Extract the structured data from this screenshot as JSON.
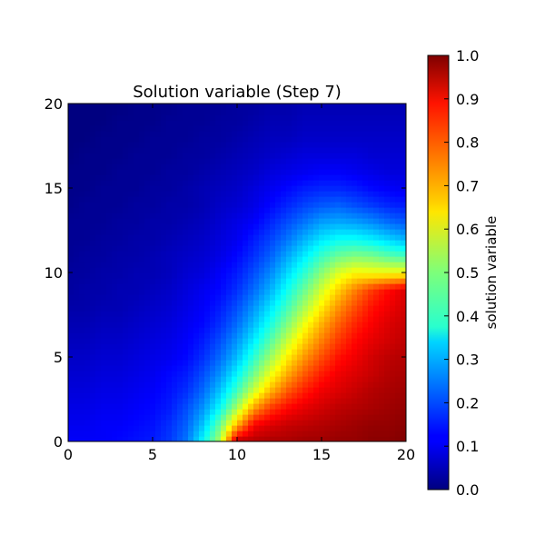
{
  "chart_data": {
    "type": "heatmap",
    "title": "Solution variable (Step 7)",
    "xlabel": "",
    "ylabel": "",
    "xlim": [
      0,
      20
    ],
    "ylim": [
      0,
      20
    ],
    "x_ticks": [
      {
        "value": 0,
        "label": "0"
      },
      {
        "value": 5,
        "label": "5"
      },
      {
        "value": 10,
        "label": "10"
      },
      {
        "value": 15,
        "label": "15"
      },
      {
        "value": 20,
        "label": "20"
      }
    ],
    "y_ticks": [
      {
        "value": 0,
        "label": "0"
      },
      {
        "value": 5,
        "label": "5"
      },
      {
        "value": 10,
        "label": "10"
      },
      {
        "value": 15,
        "label": "15"
      },
      {
        "value": 20,
        "label": "20"
      }
    ],
    "colormap": "jet",
    "colorbar": {
      "label": "solution variable",
      "range": [
        0.0,
        1.0
      ],
      "ticks": [
        {
          "value": 0.0,
          "label": "0.0"
        },
        {
          "value": 0.1,
          "label": "0.1"
        },
        {
          "value": 0.2,
          "label": "0.2"
        },
        {
          "value": 0.3,
          "label": "0.3"
        },
        {
          "value": 0.4,
          "label": "0.4"
        },
        {
          "value": 0.5,
          "label": "0.5"
        },
        {
          "value": 0.6,
          "label": "0.6"
        },
        {
          "value": 0.7,
          "label": "0.7"
        },
        {
          "value": 0.8,
          "label": "0.8"
        },
        {
          "value": 0.9,
          "label": "0.9"
        },
        {
          "value": 1.0,
          "label": "1.0"
        }
      ]
    },
    "grid": false,
    "field": {
      "description_of_values": "approximate solution values sampled on a 21x21 grid, rows y=0..20, cols x=0..20",
      "x": [
        0,
        1,
        2,
        3,
        4,
        5,
        6,
        7,
        8,
        9,
        10,
        11,
        12,
        13,
        14,
        15,
        16,
        17,
        18,
        19,
        20
      ],
      "y": [
        0,
        1,
        2,
        3,
        4,
        5,
        6,
        7,
        8,
        9,
        10,
        11,
        12,
        13,
        14,
        15,
        16,
        17,
        18,
        19,
        20
      ],
      "values": [
        [
          0.12,
          0.12,
          0.12,
          0.13,
          0.14,
          0.15,
          0.18,
          0.24,
          0.38,
          0.55,
          0.95,
          0.95,
          0.96,
          0.96,
          0.97,
          0.97,
          0.98,
          0.98,
          0.99,
          0.99,
          1.0
        ],
        [
          0.11,
          0.11,
          0.12,
          0.12,
          0.13,
          0.14,
          0.17,
          0.22,
          0.32,
          0.48,
          0.7,
          0.88,
          0.91,
          0.93,
          0.94,
          0.95,
          0.96,
          0.97,
          0.98,
          0.98,
          0.99
        ],
        [
          0.1,
          0.1,
          0.11,
          0.11,
          0.12,
          0.13,
          0.15,
          0.2,
          0.27,
          0.38,
          0.54,
          0.72,
          0.82,
          0.87,
          0.9,
          0.92,
          0.94,
          0.95,
          0.96,
          0.97,
          0.98
        ],
        [
          0.09,
          0.09,
          0.1,
          0.1,
          0.11,
          0.12,
          0.14,
          0.17,
          0.23,
          0.32,
          0.44,
          0.58,
          0.7,
          0.79,
          0.85,
          0.89,
          0.91,
          0.93,
          0.95,
          0.96,
          0.97
        ],
        [
          0.08,
          0.08,
          0.09,
          0.09,
          0.1,
          0.11,
          0.13,
          0.15,
          0.2,
          0.27,
          0.37,
          0.49,
          0.61,
          0.71,
          0.79,
          0.85,
          0.89,
          0.91,
          0.93,
          0.95,
          0.96
        ],
        [
          0.07,
          0.07,
          0.08,
          0.08,
          0.09,
          0.1,
          0.11,
          0.13,
          0.17,
          0.23,
          0.31,
          0.42,
          0.53,
          0.64,
          0.73,
          0.8,
          0.86,
          0.89,
          0.92,
          0.94,
          0.95
        ],
        [
          0.06,
          0.06,
          0.07,
          0.07,
          0.08,
          0.09,
          0.1,
          0.12,
          0.15,
          0.2,
          0.27,
          0.36,
          0.46,
          0.57,
          0.67,
          0.75,
          0.82,
          0.87,
          0.9,
          0.92,
          0.94
        ],
        [
          0.05,
          0.05,
          0.06,
          0.06,
          0.07,
          0.08,
          0.09,
          0.11,
          0.13,
          0.17,
          0.23,
          0.31,
          0.4,
          0.5,
          0.61,
          0.7,
          0.78,
          0.84,
          0.88,
          0.91,
          0.93
        ],
        [
          0.04,
          0.04,
          0.05,
          0.05,
          0.06,
          0.07,
          0.08,
          0.1,
          0.12,
          0.15,
          0.2,
          0.27,
          0.35,
          0.44,
          0.54,
          0.64,
          0.73,
          0.8,
          0.86,
          0.89,
          0.92
        ],
        [
          0.03,
          0.04,
          0.04,
          0.05,
          0.05,
          0.06,
          0.07,
          0.09,
          0.11,
          0.13,
          0.17,
          0.23,
          0.3,
          0.39,
          0.48,
          0.58,
          0.67,
          0.75,
          0.82,
          0.87,
          0.91
        ],
        [
          0.03,
          0.03,
          0.04,
          0.04,
          0.05,
          0.05,
          0.06,
          0.08,
          0.09,
          0.12,
          0.15,
          0.2,
          0.26,
          0.34,
          0.42,
          0.51,
          0.59,
          0.63,
          0.62,
          0.62,
          0.62
        ],
        [
          0.02,
          0.03,
          0.03,
          0.04,
          0.04,
          0.05,
          0.06,
          0.07,
          0.08,
          0.1,
          0.13,
          0.17,
          0.22,
          0.29,
          0.36,
          0.43,
          0.48,
          0.5,
          0.49,
          0.46,
          0.44
        ],
        [
          0.02,
          0.02,
          0.03,
          0.03,
          0.04,
          0.04,
          0.05,
          0.06,
          0.07,
          0.09,
          0.11,
          0.15,
          0.19,
          0.24,
          0.3,
          0.35,
          0.38,
          0.38,
          0.36,
          0.33,
          0.3
        ],
        [
          0.02,
          0.02,
          0.02,
          0.03,
          0.03,
          0.04,
          0.04,
          0.05,
          0.06,
          0.08,
          0.1,
          0.12,
          0.16,
          0.2,
          0.24,
          0.28,
          0.29,
          0.28,
          0.26,
          0.23,
          0.21
        ],
        [
          0.01,
          0.02,
          0.02,
          0.02,
          0.03,
          0.03,
          0.04,
          0.04,
          0.05,
          0.07,
          0.08,
          0.1,
          0.13,
          0.16,
          0.19,
          0.21,
          0.22,
          0.2,
          0.18,
          0.16,
          0.15
        ],
        [
          0.01,
          0.01,
          0.02,
          0.02,
          0.02,
          0.03,
          0.03,
          0.04,
          0.05,
          0.06,
          0.07,
          0.09,
          0.11,
          0.13,
          0.15,
          0.16,
          0.16,
          0.15,
          0.13,
          0.12,
          0.11
        ],
        [
          0.01,
          0.01,
          0.01,
          0.02,
          0.02,
          0.02,
          0.03,
          0.03,
          0.04,
          0.05,
          0.06,
          0.07,
          0.09,
          0.1,
          0.11,
          0.12,
          0.12,
          0.11,
          0.1,
          0.09,
          0.09
        ],
        [
          0.0,
          0.01,
          0.01,
          0.01,
          0.02,
          0.02,
          0.02,
          0.03,
          0.03,
          0.04,
          0.05,
          0.06,
          0.07,
          0.08,
          0.09,
          0.09,
          0.09,
          0.09,
          0.08,
          0.08,
          0.08
        ],
        [
          0.0,
          0.0,
          0.01,
          0.01,
          0.01,
          0.02,
          0.02,
          0.02,
          0.03,
          0.03,
          0.04,
          0.05,
          0.06,
          0.06,
          0.07,
          0.07,
          0.07,
          0.07,
          0.07,
          0.07,
          0.07
        ],
        [
          0.0,
          0.0,
          0.0,
          0.01,
          0.01,
          0.01,
          0.02,
          0.02,
          0.02,
          0.03,
          0.03,
          0.04,
          0.05,
          0.05,
          0.06,
          0.06,
          0.06,
          0.06,
          0.06,
          0.06,
          0.06
        ],
        [
          0.0,
          0.0,
          0.0,
          0.0,
          0.01,
          0.01,
          0.01,
          0.02,
          0.02,
          0.02,
          0.03,
          0.03,
          0.04,
          0.04,
          0.05,
          0.05,
          0.05,
          0.05,
          0.05,
          0.05,
          0.05
        ]
      ]
    }
  }
}
